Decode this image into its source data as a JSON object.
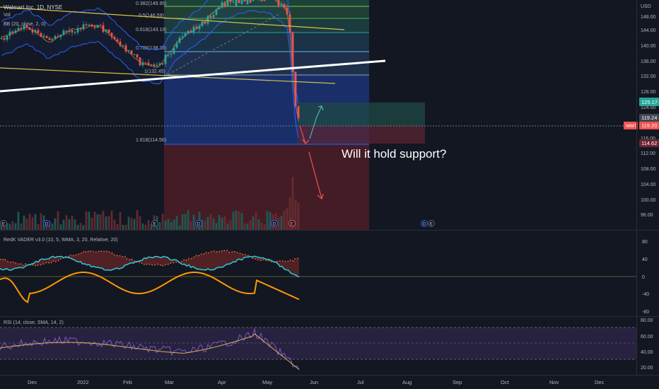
{
  "header": {
    "symbol_title": "Walmart Inc, 1D, NYSE",
    "vol_label": "Vol",
    "bb_label": "BB (20, close, 2, 0)",
    "currency": "USD"
  },
  "price_axis": {
    "ticks": [
      "148.00",
      "144.00",
      "140.00",
      "136.00",
      "132.00",
      "128.00",
      "124.00",
      "116.00",
      "112.00",
      "108.00",
      "104.00",
      "100.00",
      "96.00"
    ],
    "badges": {
      "price_125": "125.17",
      "price_119_24": "119.24",
      "price_119_20": "119.20",
      "price_114": "114.62",
      "symbol": "WMT"
    }
  },
  "fib_labels": [
    "0.382(149.95)",
    "0.5(146.59)",
    "0.618(143.19)",
    "0.786(138.38)",
    "1(132.45)",
    "1.618(114.56)"
  ],
  "annotation": "Will it hold support?",
  "event_badges": [
    "E",
    "D",
    "E",
    "D",
    "D",
    "E",
    "D",
    "E"
  ],
  "vader": {
    "label": "RedK VADER v3.0 (10, 5, WMA, 3, 20, Relative, 20)",
    "ticks": [
      "80",
      "40",
      "0",
      "-40",
      "-80"
    ]
  },
  "rsi": {
    "label": "RSI (14, close, SMA, 14, 2)",
    "ticks": [
      "80.00",
      "60.00",
      "40.00",
      "20.00"
    ]
  },
  "time_axis": [
    "Dec",
    "2022",
    "Feb",
    "Mar",
    "Apr",
    "May",
    "Jun",
    "Jul",
    "Aug",
    "Sep",
    "Oct",
    "Nov",
    "Dec"
  ],
  "colors": {
    "bg": "#131722",
    "up": "#26a69a",
    "down": "#ef5350",
    "orange": "#ff9800",
    "cyan": "#2dc9d6",
    "fib_yellow": "#d6c24a"
  }
}
